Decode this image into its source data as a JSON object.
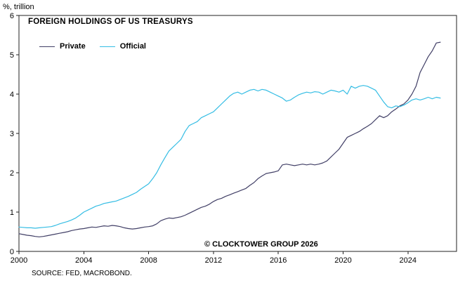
{
  "chart_data": {
    "type": "line",
    "title": "FOREIGN HOLDINGS OF US TREASURYS",
    "ylabel": "%, trillion",
    "xlabel": "",
    "watermark": "© CLOCKTOWER GROUP 2026",
    "source": "SOURCE: FED, MACROBOND.",
    "ylim": [
      0,
      6
    ],
    "xlim": [
      2000,
      2027
    ],
    "y_ticks": [
      0,
      1,
      2,
      3,
      4,
      5,
      6
    ],
    "x_ticks": [
      2000,
      2004,
      2008,
      2012,
      2016,
      2020,
      2024
    ],
    "grid": false,
    "legend_position": "top-left",
    "x": [
      2000,
      2000.25,
      2000.5,
      2000.75,
      2001,
      2001.25,
      2001.5,
      2001.75,
      2002,
      2002.25,
      2002.5,
      2002.75,
      2003,
      2003.25,
      2003.5,
      2003.75,
      2004,
      2004.25,
      2004.5,
      2004.75,
      2005,
      2005.25,
      2005.5,
      2005.75,
      2006,
      2006.25,
      2006.5,
      2006.75,
      2007,
      2007.25,
      2007.5,
      2007.75,
      2008,
      2008.25,
      2008.5,
      2008.75,
      2009,
      2009.25,
      2009.5,
      2009.75,
      2010,
      2010.25,
      2010.5,
      2010.75,
      2011,
      2011.25,
      2011.5,
      2011.75,
      2012,
      2012.25,
      2012.5,
      2012.75,
      2013,
      2013.25,
      2013.5,
      2013.75,
      2014,
      2014.25,
      2014.5,
      2014.75,
      2015,
      2015.25,
      2015.5,
      2015.75,
      2016,
      2016.25,
      2016.5,
      2016.75,
      2017,
      2017.25,
      2017.5,
      2017.75,
      2018,
      2018.25,
      2018.5,
      2018.75,
      2019,
      2019.25,
      2019.5,
      2019.75,
      2020,
      2020.25,
      2020.5,
      2020.75,
      2021,
      2021.25,
      2021.5,
      2021.75,
      2022,
      2022.25,
      2022.5,
      2022.75,
      2023,
      2023.25,
      2023.5,
      2023.75,
      2024,
      2024.25,
      2024.5,
      2024.75,
      2025,
      2025.25,
      2025.5,
      2025.75,
      2026
    ],
    "series": [
      {
        "name": "Private",
        "color": "#413f66",
        "values": [
          0.45,
          0.43,
          0.41,
          0.4,
          0.38,
          0.37,
          0.38,
          0.4,
          0.42,
          0.44,
          0.46,
          0.48,
          0.5,
          0.53,
          0.55,
          0.57,
          0.58,
          0.6,
          0.62,
          0.61,
          0.63,
          0.65,
          0.64,
          0.66,
          0.65,
          0.63,
          0.6,
          0.58,
          0.57,
          0.58,
          0.6,
          0.62,
          0.63,
          0.65,
          0.7,
          0.78,
          0.82,
          0.85,
          0.84,
          0.86,
          0.88,
          0.92,
          0.97,
          1.02,
          1.07,
          1.12,
          1.15,
          1.2,
          1.27,
          1.32,
          1.35,
          1.4,
          1.44,
          1.48,
          1.52,
          1.56,
          1.6,
          1.68,
          1.75,
          1.85,
          1.92,
          1.98,
          2.0,
          2.02,
          2.05,
          2.2,
          2.22,
          2.2,
          2.18,
          2.2,
          2.22,
          2.2,
          2.22,
          2.2,
          2.22,
          2.25,
          2.3,
          2.4,
          2.5,
          2.6,
          2.75,
          2.9,
          2.95,
          3.0,
          3.05,
          3.12,
          3.18,
          3.25,
          3.35,
          3.45,
          3.4,
          3.45,
          3.55,
          3.62,
          3.7,
          3.75,
          3.85,
          4.0,
          4.2,
          4.55,
          4.75,
          4.95,
          5.1,
          5.3,
          5.32
        ]
      },
      {
        "name": "Official",
        "color": "#35bde4",
        "values": [
          0.62,
          0.61,
          0.6,
          0.6,
          0.59,
          0.6,
          0.61,
          0.62,
          0.63,
          0.66,
          0.7,
          0.73,
          0.76,
          0.8,
          0.85,
          0.92,
          1.0,
          1.05,
          1.1,
          1.15,
          1.18,
          1.22,
          1.24,
          1.26,
          1.28,
          1.32,
          1.36,
          1.4,
          1.45,
          1.5,
          1.58,
          1.65,
          1.72,
          1.85,
          2.0,
          2.2,
          2.38,
          2.55,
          2.65,
          2.75,
          2.85,
          3.05,
          3.2,
          3.25,
          3.3,
          3.4,
          3.45,
          3.5,
          3.55,
          3.65,
          3.75,
          3.85,
          3.95,
          4.02,
          4.05,
          4.0,
          4.05,
          4.1,
          4.12,
          4.08,
          4.12,
          4.1,
          4.05,
          4.0,
          3.95,
          3.9,
          3.82,
          3.85,
          3.92,
          3.98,
          4.02,
          4.05,
          4.03,
          4.06,
          4.05,
          4.0,
          4.05,
          4.1,
          4.08,
          4.05,
          4.1,
          4.0,
          4.2,
          4.15,
          4.2,
          4.22,
          4.2,
          4.15,
          4.1,
          3.95,
          3.8,
          3.68,
          3.65,
          3.7,
          3.68,
          3.72,
          3.78,
          3.85,
          3.88,
          3.85,
          3.88,
          3.92,
          3.88,
          3.92,
          3.9
        ]
      }
    ]
  }
}
